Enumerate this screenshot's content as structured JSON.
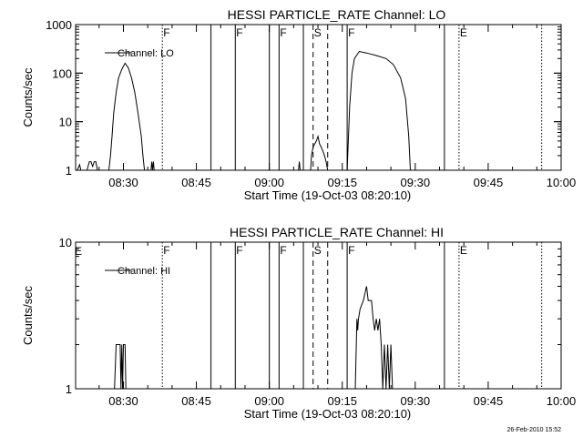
{
  "footer_timestamp": "26-Feb-2010 15:52",
  "chart_data": [
    {
      "type": "line",
      "title": "HESSI PARTICLE_RATE Channel: LO",
      "xlabel": "Start Time (19-Oct-03 08:20:10)",
      "ylabel": "Counts/sec",
      "yscale": "log",
      "ylim": [
        1,
        1000
      ],
      "ytick_labels": [
        {
          "value": 1,
          "label": "1"
        },
        {
          "value": 10,
          "label": "10"
        },
        {
          "value": 100,
          "label": "100"
        },
        {
          "value": 1000,
          "label": "1000"
        }
      ],
      "xlim": [
        "08:20:10",
        "10:00"
      ],
      "xtick_labels": [
        {
          "value": "08:30",
          "label": "08:30"
        },
        {
          "value": "08:45",
          "label": "08:45"
        },
        {
          "value": "09:00",
          "label": "09:00"
        },
        {
          "value": "09:15",
          "label": "09:15"
        },
        {
          "value": "09:30",
          "label": "09:30"
        },
        {
          "value": "09:45",
          "label": "09:45"
        },
        {
          "value": "10:00",
          "label": "10:00"
        }
      ],
      "legend": {
        "label": "Channel: LO",
        "placement": "top-left"
      },
      "markers": [
        {
          "time": "08:38",
          "style": "dotted",
          "label": "F"
        },
        {
          "time": "08:48",
          "style": "solid",
          "label": ""
        },
        {
          "time": "08:53",
          "style": "solid",
          "label": "F"
        },
        {
          "time": "09:00",
          "style": "solid",
          "label": ""
        },
        {
          "time": "09:02",
          "style": "solid",
          "label": "F"
        },
        {
          "time": "09:07",
          "style": "solid",
          "label": ""
        },
        {
          "time": "09:09",
          "style": "dashed",
          "label": "S"
        },
        {
          "time": "09:12",
          "style": "dashed",
          "label": ""
        },
        {
          "time": "09:16",
          "style": "solid",
          "label": "F"
        },
        {
          "time": "09:36",
          "style": "solid",
          "label": ""
        },
        {
          "time": "09:39",
          "style": "dotted",
          "label": "E"
        },
        {
          "time": "09:56",
          "style": "dotted",
          "label": ""
        }
      ],
      "series": [
        {
          "segments": [
            [
              [
                "08:20:30",
                1
              ],
              [
                "08:21:00",
                1.3
              ],
              [
                "08:21:15",
                1
              ],
              [
                "08:21:30",
                1
              ]
            ],
            [
              [
                "08:22:30",
                1
              ],
              [
                "08:23:00",
                1.5
              ],
              [
                "08:23:20",
                1.5
              ],
              [
                "08:23:40",
                1.2
              ],
              [
                "08:24:00",
                1.5
              ],
              [
                "08:24:20",
                1.5
              ],
              [
                "08:24:40",
                1
              ]
            ],
            [
              [
                "08:27:00",
                1
              ],
              [
                "08:27:20",
                2
              ],
              [
                "08:27:40",
                5
              ],
              [
                "08:28:00",
                15
              ],
              [
                "08:28:30",
                40
              ],
              [
                "08:29:00",
                80
              ],
              [
                "08:29:40",
                120
              ],
              [
                "08:30:20",
                160
              ],
              [
                "08:31:00",
                130
              ],
              [
                "08:31:40",
                80
              ],
              [
                "08:32:20",
                40
              ],
              [
                "08:33:00",
                15
              ],
              [
                "08:33:40",
                5
              ],
              [
                "08:34:00",
                2
              ],
              [
                "08:34:20",
                1
              ]
            ],
            [
              [
                "08:35:40",
                1
              ],
              [
                "08:35:50",
                1.5
              ],
              [
                "08:36:00",
                1
              ],
              [
                "08:36:10",
                1.5
              ],
              [
                "08:36:20",
                1
              ]
            ],
            [
              [
                "09:06:00",
                1
              ],
              [
                "09:06:10",
                1.5
              ],
              [
                "09:06:20",
                1
              ]
            ],
            [
              [
                "09:08:30",
                1
              ],
              [
                "09:08:40",
                2
              ],
              [
                "09:09:00",
                3
              ],
              [
                "09:09:20",
                3.5
              ],
              [
                "09:09:40",
                4
              ],
              [
                "09:10:00",
                5
              ],
              [
                "09:10:20",
                3.5
              ],
              [
                "09:10:40",
                3
              ],
              [
                "09:11:00",
                2.5
              ],
              [
                "09:11:20",
                2
              ],
              [
                "09:11:40",
                1.5
              ],
              [
                "09:12:00",
                1
              ]
            ],
            [
              [
                "09:16:00",
                1
              ],
              [
                "09:16:30",
                20
              ],
              [
                "09:17:00",
                100
              ],
              [
                "09:17:30",
                200
              ],
              [
                "09:18:30",
                280
              ],
              [
                "09:20:00",
                260
              ],
              [
                "09:22:00",
                230
              ],
              [
                "09:24:00",
                200
              ],
              [
                "09:25:30",
                150
              ],
              [
                "09:27:00",
                80
              ],
              [
                "09:28:00",
                30
              ],
              [
                "09:28:40",
                5
              ],
              [
                "09:29:00",
                1
              ]
            ]
          ]
        }
      ]
    },
    {
      "type": "line",
      "title": "HESSI PARTICLE_RATE Channel: HI",
      "xlabel": "Start Time (19-Oct-03 08:20:10)",
      "ylabel": "Counts/sec",
      "yscale": "log",
      "ylim": [
        1,
        10
      ],
      "ytick_labels": [
        {
          "value": 1,
          "label": "1"
        },
        {
          "value": 10,
          "label": "10"
        }
      ],
      "xlim": [
        "08:20:10",
        "10:00"
      ],
      "xtick_labels": [
        {
          "value": "08:30",
          "label": "08:30"
        },
        {
          "value": "08:45",
          "label": "08:45"
        },
        {
          "value": "09:00",
          "label": "09:00"
        },
        {
          "value": "09:15",
          "label": "09:15"
        },
        {
          "value": "09:30",
          "label": "09:30"
        },
        {
          "value": "09:45",
          "label": "09:45"
        },
        {
          "value": "10:00",
          "label": "10:00"
        }
      ],
      "legend": {
        "label": "Channel: HI",
        "placement": "top-left"
      },
      "edge_label": "E",
      "markers": [
        {
          "time": "08:38",
          "style": "dotted",
          "label": "F"
        },
        {
          "time": "08:48",
          "style": "solid",
          "label": ""
        },
        {
          "time": "08:53",
          "style": "solid",
          "label": "F"
        },
        {
          "time": "09:00",
          "style": "solid",
          "label": ""
        },
        {
          "time": "09:02",
          "style": "solid",
          "label": "F"
        },
        {
          "time": "09:07",
          "style": "solid",
          "label": ""
        },
        {
          "time": "09:09",
          "style": "dashed",
          "label": "S"
        },
        {
          "time": "09:12",
          "style": "dashed",
          "label": ""
        },
        {
          "time": "09:16",
          "style": "solid",
          "label": "F"
        },
        {
          "time": "09:36",
          "style": "solid",
          "label": ""
        },
        {
          "time": "09:39",
          "style": "dotted",
          "label": "E"
        },
        {
          "time": "09:56",
          "style": "dotted",
          "label": ""
        }
      ],
      "series": [
        {
          "segments": [
            [
              [
                "08:28:10",
                1
              ],
              [
                "08:28:30",
                2
              ],
              [
                "08:29:20",
                2
              ],
              [
                "08:29:30",
                1
              ],
              [
                "08:29:40",
                2
              ],
              [
                "08:29:50",
                1
              ],
              [
                "08:30:00",
                2
              ],
              [
                "08:30:20",
                2
              ],
              [
                "08:30:30",
                1
              ]
            ],
            [
              [
                "09:17:40",
                1
              ],
              [
                "09:18:00",
                3
              ],
              [
                "09:18:10",
                2.5
              ],
              [
                "09:18:20",
                3
              ],
              [
                "09:18:40",
                3.5
              ],
              [
                "09:19:20",
                4
              ],
              [
                "09:20:00",
                5
              ],
              [
                "09:20:20",
                4
              ],
              [
                "09:21:00",
                4
              ],
              [
                "09:21:20",
                3
              ],
              [
                "09:21:40",
                2.5
              ],
              [
                "09:22:00",
                3
              ],
              [
                "09:22:20",
                2.5
              ],
              [
                "09:22:40",
                3
              ],
              [
                "09:23:00",
                2
              ],
              [
                "09:23:20",
                1
              ],
              [
                "09:23:40",
                2
              ],
              [
                "09:24:00",
                1
              ],
              [
                "09:24:20",
                2
              ],
              [
                "09:24:40",
                1
              ],
              [
                "09:25:00",
                2
              ],
              [
                "09:25:20",
                1
              ]
            ]
          ]
        }
      ]
    }
  ]
}
